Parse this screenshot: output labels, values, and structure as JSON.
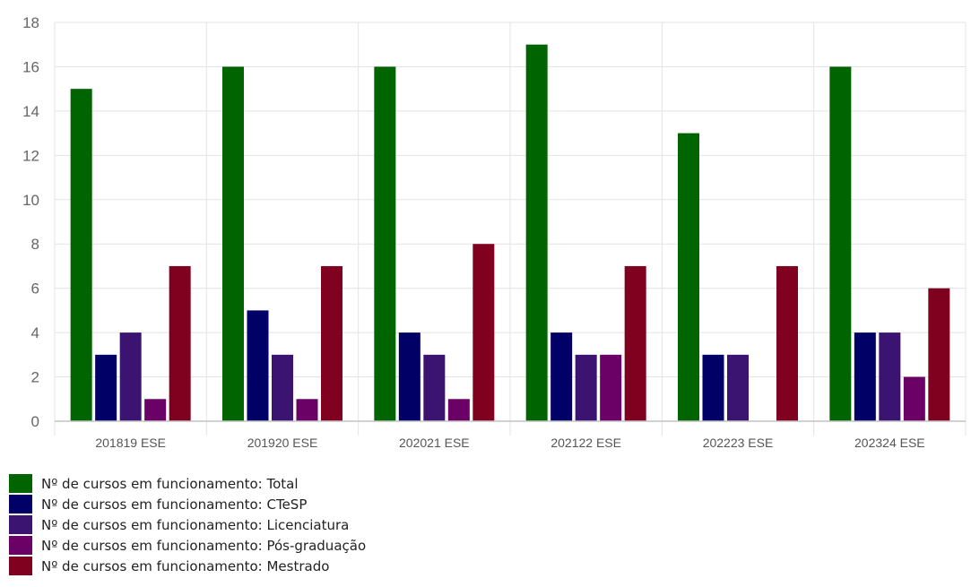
{
  "chart_data": {
    "type": "bar",
    "categories": [
      "201819 ESE",
      "201920 ESE",
      "202021 ESE",
      "202122 ESE",
      "202223 ESE",
      "202324 ESE"
    ],
    "series": [
      {
        "name": "Nº de cursos em funcionamento: Total",
        "color": "#006400",
        "values": [
          15,
          16,
          16,
          17,
          13,
          16
        ]
      },
      {
        "name": "Nº de cursos em funcionamento: CTeSP",
        "color": "#000066",
        "values": [
          3,
          5,
          4,
          4,
          3,
          4
        ]
      },
      {
        "name": "Nº de cursos em funcionamento: Licenciatura",
        "color": "#3b1471",
        "values": [
          4,
          3,
          3,
          3,
          3,
          4
        ]
      },
      {
        "name": "Nº de cursos em funcionamento: Pós-graduação",
        "color": "#6b0066",
        "values": [
          1,
          1,
          1,
          3,
          0,
          2
        ]
      },
      {
        "name": "Nº de cursos em funcionamento: Mestrado",
        "color": "#800020",
        "values": [
          7,
          7,
          8,
          7,
          7,
          6
        ]
      }
    ],
    "ylim": [
      0,
      18
    ],
    "yticks": [
      0,
      2,
      4,
      6,
      8,
      10,
      12,
      14,
      16,
      18
    ],
    "title": "",
    "xlabel": "",
    "ylabel": "",
    "grid": true,
    "legend_position": "bottom-left"
  }
}
